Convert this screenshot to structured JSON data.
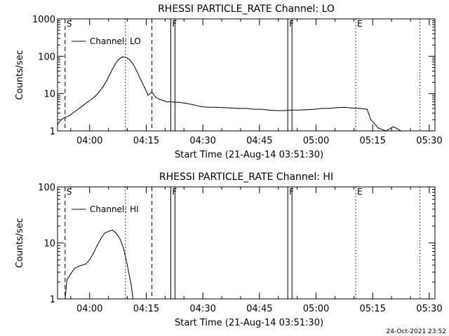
{
  "footer_timestamp": "24-Oct-2021 23:52",
  "chart_data": [
    {
      "type": "line",
      "title": "RHESSI PARTICLE_RATE Channel: LO",
      "xlabel": "Start Time (21-Aug-14 03:51:30)",
      "ylabel": "Counts/sec",
      "yscale": "log",
      "ylim": [
        1,
        1000
      ],
      "yticks": [
        1,
        10,
        100,
        1000
      ],
      "ytick_labels": [
        "1",
        "10",
        "100",
        "1000"
      ],
      "xlim": [
        "03:51:30",
        "05:31:30"
      ],
      "xtick_labels": [
        "04:00",
        "04:15",
        "04:30",
        "04:45",
        "05:00",
        "05:15",
        "05:30"
      ],
      "legend": {
        "label": "Channel: LO",
        "position": "top-left"
      },
      "series": [
        {
          "x": [
            "03:51:30",
            "03:52:30",
            "03:53:30",
            "03:54:30",
            "03:55:30",
            "03:56:30",
            "03:57:30",
            "03:58:30",
            "03:59:30",
            "04:00:30",
            "04:01:30",
            "04:02:30",
            "04:03:30",
            "04:04:30",
            "04:05:30",
            "04:06:30",
            "04:07:30",
            "04:08:30",
            "04:09:30",
            "04:10:30",
            "04:11:30",
            "04:12:30",
            "04:13:30",
            "04:14:30",
            "04:15:30",
            "04:16:30",
            "04:17:30",
            "04:18:30",
            "04:19:30",
            "04:20:30",
            "04:21:30",
            "04:23:30",
            "04:25:30",
            "04:27:30",
            "04:29:30",
            "04:31:30",
            "04:33:30",
            "04:35:30",
            "04:37:30",
            "04:39:30",
            "04:41:30",
            "04:43:30",
            "04:45:30",
            "04:47:30",
            "04:49:30",
            "04:51:30",
            "04:53:30",
            "04:55:30",
            "04:57:30",
            "04:59:30",
            "05:01:30",
            "05:03:30",
            "05:05:30",
            "05:07:30",
            "05:09:30",
            "05:11:30",
            "05:13:30",
            "05:14:30",
            "05:16:30",
            "05:18:30",
            "05:20:30",
            "05:22:30",
            "05:24:30"
          ],
          "values": [
            1.5,
            2,
            2.3,
            2.5,
            3,
            3.5,
            4.2,
            5,
            6,
            7,
            8.5,
            11,
            15,
            22,
            35,
            55,
            78,
            95,
            95,
            82,
            62,
            40,
            24,
            15,
            9,
            11,
            8,
            7,
            6.5,
            6,
            6,
            5.8,
            5.5,
            5,
            4.5,
            4.3,
            4.3,
            4.2,
            4.1,
            4,
            4,
            3.8,
            3.8,
            3.6,
            3.5,
            3.5,
            3.6,
            3.6,
            3.7,
            3.8,
            4,
            4,
            4.2,
            4.3,
            4.1,
            4,
            3.8,
            2,
            1.2,
            1,
            1.3,
            1,
            1
          ]
        }
      ],
      "markers": [
        {
          "label": "S",
          "time": "03:53:30",
          "style": "dashed"
        },
        {
          "time": "04:09:30",
          "style": "dotted"
        },
        {
          "time": "04:16:30",
          "style": "dashed"
        },
        {
          "label": "F",
          "time": "04:21:30",
          "style": "solid-pair"
        },
        {
          "label": "F",
          "time": "04:52:30",
          "style": "solid-pair"
        },
        {
          "label": "E",
          "time": "05:10:30",
          "style": "dotted"
        },
        {
          "time": "05:27:30",
          "style": "dotted"
        }
      ]
    },
    {
      "type": "line",
      "title": "RHESSI PARTICLE_RATE Channel: HI",
      "xlabel": "Start Time (21-Aug-14 03:51:30)",
      "ylabel": "Counts/sec",
      "yscale": "log",
      "ylim": [
        1,
        100
      ],
      "yticks": [
        1,
        10,
        100
      ],
      "ytick_labels": [
        "1",
        "10",
        "100"
      ],
      "xlim": [
        "03:51:30",
        "05:31:30"
      ],
      "xtick_labels": [
        "04:00",
        "04:15",
        "04:30",
        "04:45",
        "05:00",
        "05:15",
        "05:30"
      ],
      "legend": {
        "label": "Channel: HI",
        "position": "top-left"
      },
      "series": [
        {
          "x": [
            "03:53:30",
            "03:54:00",
            "03:55:00",
            "03:56:00",
            "03:57:00",
            "03:58:00",
            "03:59:00",
            "04:00:00",
            "04:01:00",
            "04:02:00",
            "04:03:00",
            "04:04:00",
            "04:05:00",
            "04:06:00",
            "04:07:00",
            "04:08:00",
            "04:09:00",
            "04:10:00",
            "04:11:00",
            "04:11:30"
          ],
          "values": [
            1,
            2.2,
            2.8,
            3.5,
            3.8,
            4,
            4.2,
            5,
            6.5,
            9,
            12,
            15,
            16,
            17,
            15,
            12,
            8,
            4,
            1.8,
            1
          ]
        }
      ],
      "markers": [
        {
          "label": "S",
          "time": "03:53:30",
          "style": "dashed"
        },
        {
          "time": "04:09:30",
          "style": "dotted"
        },
        {
          "time": "04:16:30",
          "style": "dashed"
        },
        {
          "label": "F",
          "time": "04:21:30",
          "style": "solid-pair"
        },
        {
          "label": "F",
          "time": "04:52:30",
          "style": "solid-pair"
        },
        {
          "label": "E",
          "time": "05:10:30",
          "style": "dotted"
        },
        {
          "time": "05:27:30",
          "style": "dotted"
        }
      ]
    }
  ]
}
